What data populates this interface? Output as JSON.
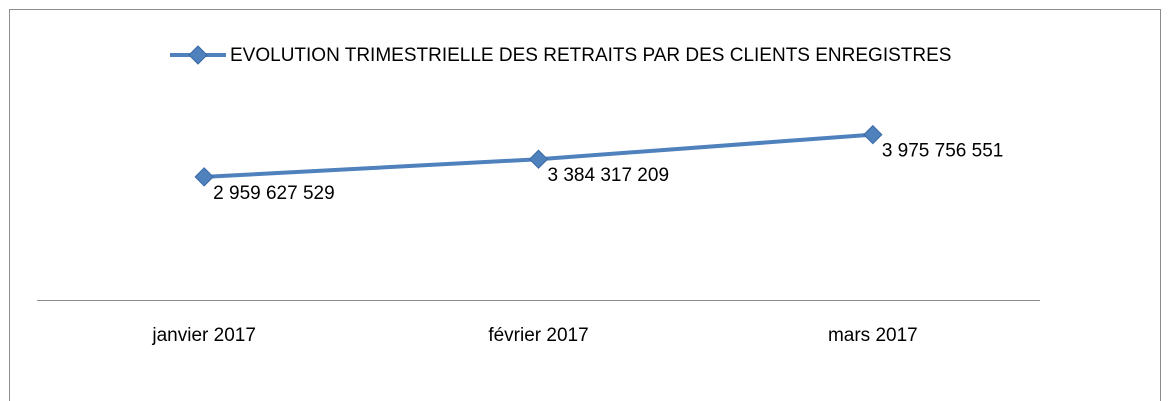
{
  "chart_data": {
    "type": "line",
    "categories": [
      "janvier 2017",
      "février 2017",
      "mars 2017"
    ],
    "series": [
      {
        "name": "EVOLUTION TRIMESTRIELLE DES RETRAITS PAR DES CLIENTS ENREGISTRES",
        "color": "#4f81bd",
        "values": [
          2959627529,
          3384317209,
          3975756551
        ],
        "value_labels": [
          "2 959 627 529",
          "3 384 317 209",
          "3 975 756 551"
        ]
      }
    ],
    "ylim": [
      0,
      5000000000
    ],
    "legend": "top"
  }
}
